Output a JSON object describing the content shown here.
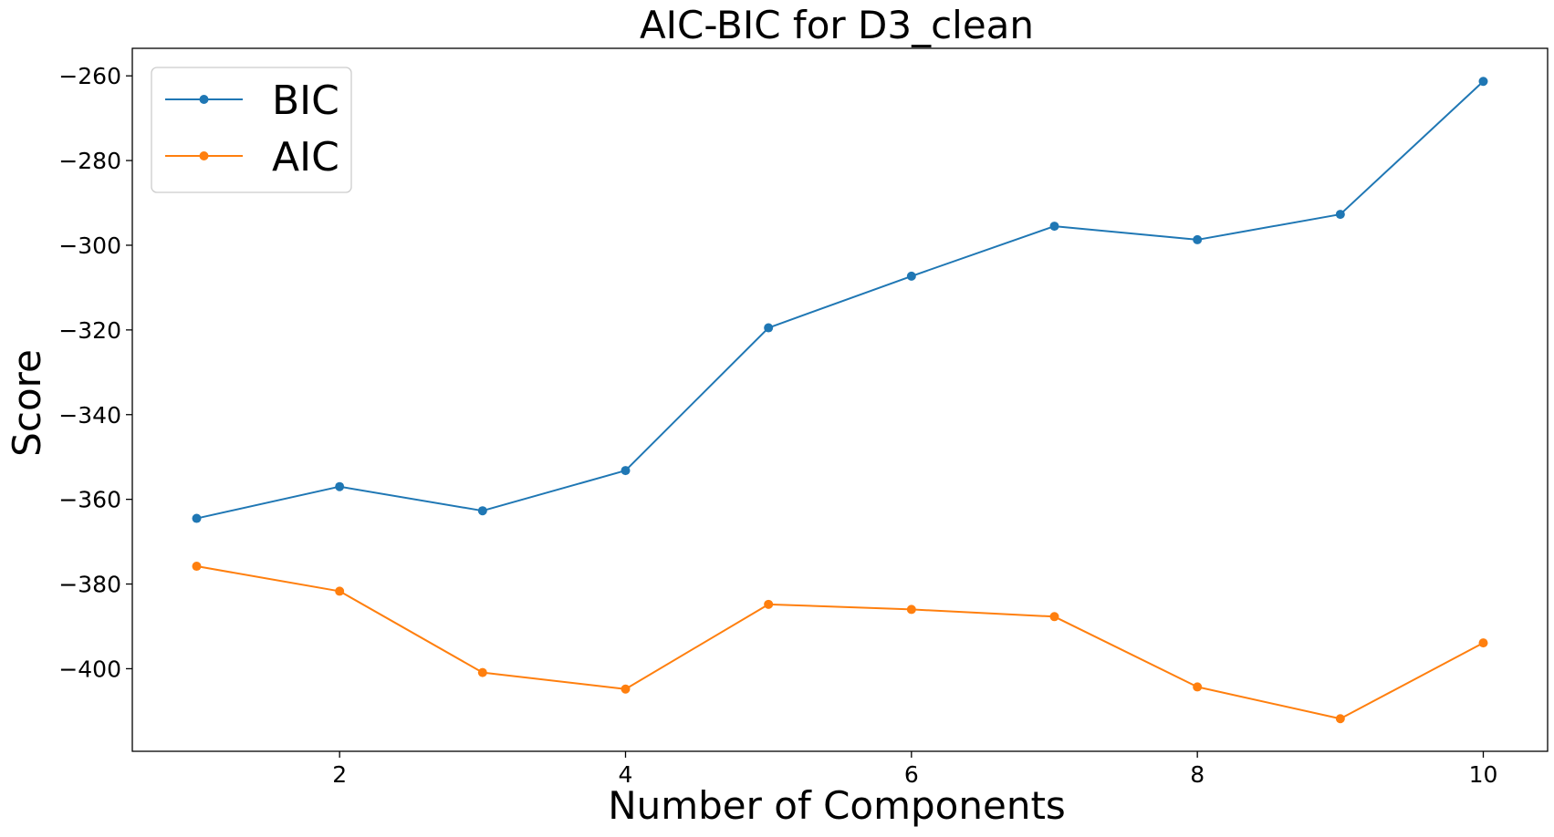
{
  "chart_data": {
    "type": "line",
    "title": "AIC-BIC for D3_clean",
    "xlabel": "Number of Components",
    "ylabel": "Score",
    "x": [
      1,
      2,
      3,
      4,
      5,
      6,
      7,
      8,
      9,
      10
    ],
    "xlim": [
      0.55,
      10.45
    ],
    "ylim": [
      -419.5,
      -253.5
    ],
    "xticks": [
      2,
      4,
      6,
      8,
      10
    ],
    "yticks": [
      -400,
      -380,
      -360,
      -340,
      -320,
      -300,
      -280,
      -260
    ],
    "ytick_labels": [
      "−400",
      "−380",
      "−360",
      "−340",
      "−320",
      "−300",
      "−280",
      "−260"
    ],
    "grid": false,
    "legend_position": "top-left",
    "series": [
      {
        "name": "BIC",
        "color": "#1f77b4",
        "values": [
          -364.5,
          -357.0,
          -362.7,
          -353.2,
          -319.5,
          -307.3,
          -295.5,
          -298.7,
          -292.7,
          -261.3
        ]
      },
      {
        "name": "AIC",
        "color": "#ff7f0e",
        "values": [
          -375.8,
          -381.7,
          -400.9,
          -404.8,
          -384.8,
          -386.0,
          -387.7,
          -404.3,
          -411.8,
          -393.9
        ]
      }
    ]
  }
}
